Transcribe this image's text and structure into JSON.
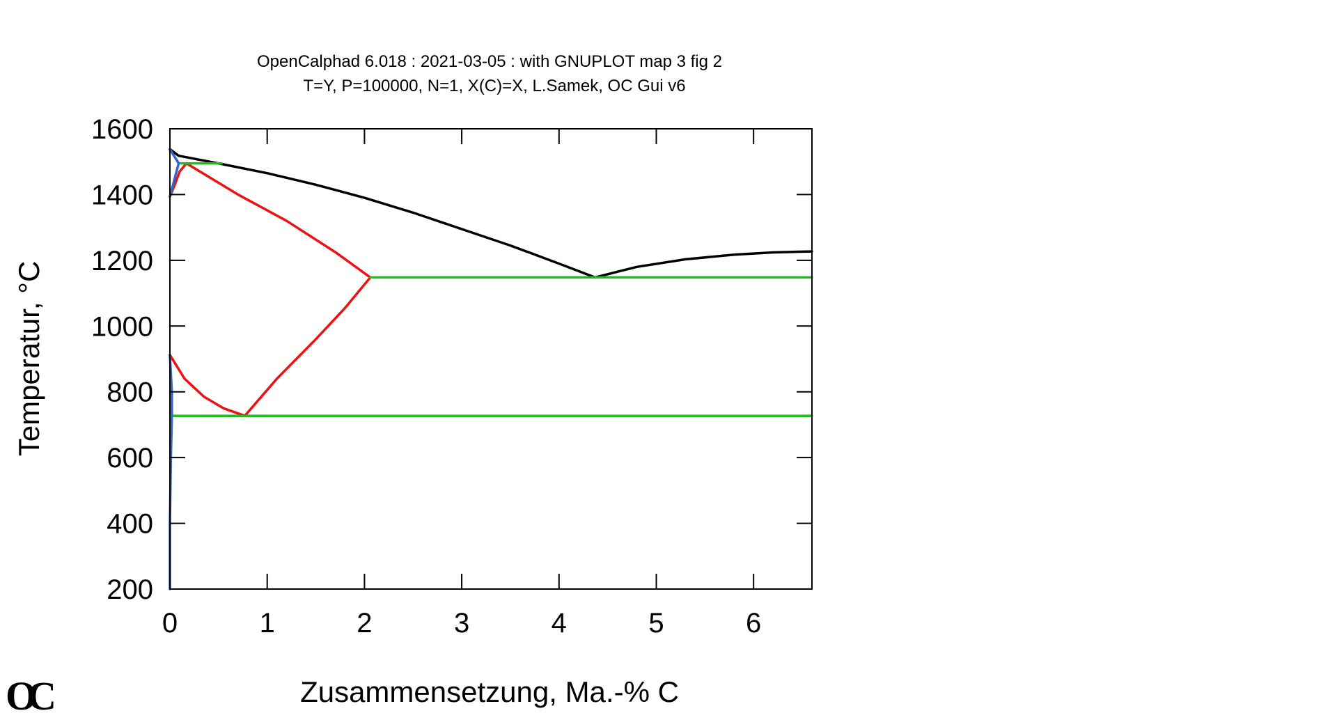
{
  "chart_data": {
    "type": "line",
    "title": "OpenCalphad 6.018 :  2021-03-05 : with GNUPLOT map 3 fig 2",
    "subtitle": "T=Y,  P=100000, N=1, X(C)=X, L.Samek, OC Gui v6",
    "xlabel": "Zusammensetzung, Ma.-% C",
    "ylabel": "Temperatur,  °C",
    "xlim": [
      0,
      6.6
    ],
    "ylim": [
      200,
      1600
    ],
    "xticks": [
      0,
      1,
      2,
      3,
      4,
      5,
      6
    ],
    "yticks": [
      200,
      400,
      600,
      800,
      1000,
      1200,
      1400,
      1600
    ],
    "xtick_labels": [
      "0",
      "1",
      "2",
      "3",
      "4",
      "5",
      "6"
    ],
    "ytick_labels": [
      "200",
      "400",
      "600",
      "800",
      "1000",
      "1200",
      "1400",
      "1600"
    ],
    "grid": false,
    "series": [
      {
        "color": "#000000",
        "segments": [
          [
            [
              0,
              1538
            ],
            [
              0.09,
              1518
            ],
            [
              0.53,
              1493
            ],
            [
              1.0,
              1465
            ],
            [
              1.5,
              1430
            ],
            [
              2.0,
              1390
            ],
            [
              2.5,
              1345
            ],
            [
              3.0,
              1295
            ],
            [
              3.5,
              1245
            ],
            [
              4.0,
              1190
            ],
            [
              4.37,
              1148
            ]
          ],
          [
            [
              4.37,
              1148
            ],
            [
              4.8,
              1180
            ],
            [
              5.3,
              1203
            ],
            [
              5.8,
              1217
            ],
            [
              6.2,
              1224
            ],
            [
              6.6,
              1227
            ]
          ]
        ]
      },
      {
        "color": "#ee1111",
        "segments": [
          [
            [
              0,
              1394
            ],
            [
              0.05,
              1430
            ],
            [
              0.1,
              1470
            ],
            [
              0.17,
              1495
            ]
          ],
          [
            [
              0.17,
              1495
            ],
            [
              0.7,
              1400
            ],
            [
              1.2,
              1320
            ],
            [
              1.7,
              1225
            ],
            [
              2.06,
              1148
            ]
          ],
          [
            [
              0,
              912
            ],
            [
              0.15,
              840
            ],
            [
              0.35,
              785
            ],
            [
              0.55,
              750
            ],
            [
              0.77,
              727
            ]
          ],
          [
            [
              0.77,
              727
            ],
            [
              1.1,
              840
            ],
            [
              1.5,
              960
            ],
            [
              1.8,
              1055
            ],
            [
              2.06,
              1148
            ]
          ]
        ]
      },
      {
        "color": "#22bb22",
        "segments": [
          [
            [
              0.09,
              1495
            ],
            [
              0.53,
              1495
            ]
          ],
          [
            [
              2.06,
              1148
            ],
            [
              6.6,
              1148
            ]
          ],
          [
            [
              0.02,
              727
            ],
            [
              6.6,
              727
            ]
          ]
        ]
      },
      {
        "color": "#3366cc",
        "segments": [
          [
            [
              0,
              1538
            ],
            [
              0.09,
              1495
            ]
          ],
          [
            [
              0,
              1394
            ],
            [
              0.05,
              1450
            ],
            [
              0.09,
              1495
            ]
          ],
          [
            [
              0,
              912
            ],
            [
              0.02,
              800
            ],
            [
              0.02,
              727
            ]
          ],
          [
            [
              0.02,
              727
            ],
            [
              0.01,
              600
            ],
            [
              0,
              400
            ],
            [
              0,
              200
            ]
          ]
        ]
      }
    ]
  },
  "logo": {
    "text": "OC"
  }
}
